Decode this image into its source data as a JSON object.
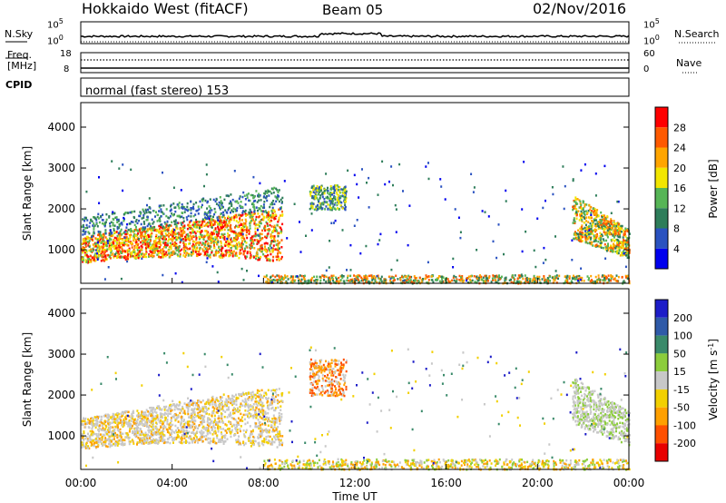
{
  "header": {
    "title": "Hokkaido West (fitACF)",
    "beam": "Beam 05",
    "date": "02/Nov/2016"
  },
  "noise_panel": {
    "left_label": "N.Sky",
    "right_label": "N.Search",
    "tick_top": "10^5",
    "tick_bottom": "10^0",
    "tick_top_right": "10^5",
    "tick_bottom_right": "10^0"
  },
  "freq_panel": {
    "left_label_line1": "Freq.",
    "left_label_line2": "[MHz]",
    "right_label": "Nave",
    "left_tick_top": "18",
    "left_tick_bottom": "8",
    "right_tick_top": "60",
    "right_tick_bottom": "0"
  },
  "cpid_panel": {
    "label": "CPID",
    "value": "normal (fast stereo) 153"
  },
  "chart_data": [
    {
      "type": "heatmap",
      "name": "power",
      "ylabel": "Slant Range [km]",
      "yticks": [
        "1000",
        "2000",
        "3000",
        "4000"
      ],
      "ylim": [
        180,
        4600
      ],
      "xlim": [
        0,
        24
      ],
      "colorbar_label": "Power [dB]",
      "colorbar_ticks": [
        "4",
        "8",
        "12",
        "16",
        "20",
        "24",
        "28"
      ],
      "colorbar_colors": [
        "#0000ee",
        "#2a52c0",
        "#2e7d5a",
        "#56b556",
        "#f2e600",
        "#ffa500",
        "#ff5a00",
        "#ff0000"
      ]
    },
    {
      "type": "heatmap",
      "name": "velocity",
      "ylabel": "Slant Range [km]",
      "yticks": [
        "1000",
        "2000",
        "3000",
        "4000"
      ],
      "ylim": [
        180,
        4600
      ],
      "xlim": [
        0,
        24
      ],
      "xlabel": "Time UT",
      "xticks": [
        "00:00",
        "04:00",
        "08:00",
        "12:00",
        "16:00",
        "20:00",
        "00:00"
      ],
      "colorbar_label": "Velocity [m s^-1]",
      "colorbar_ticks": [
        "200",
        "100",
        "50",
        "15",
        "-15",
        "-50",
        "-100",
        "-200"
      ],
      "colorbar_colors": [
        "#1d1dc8",
        "#2f5aa8",
        "#3a8a6a",
        "#8ccd3c",
        "#c8c8c8",
        "#f2d000",
        "#ffa000",
        "#ff5000",
        "#e80000"
      ]
    }
  ]
}
